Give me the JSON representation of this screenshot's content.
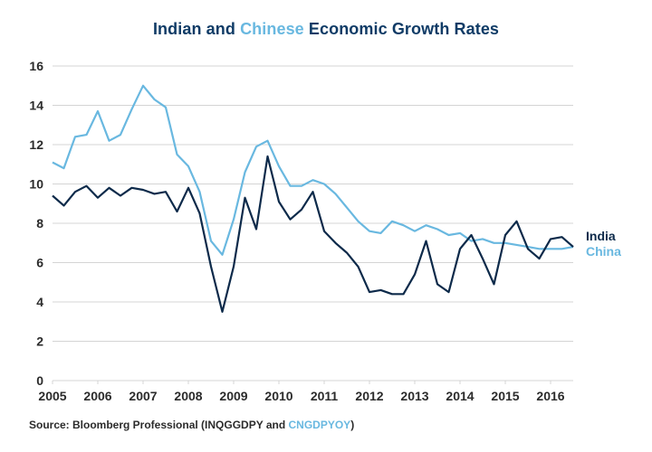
{
  "chart_data": {
    "type": "line",
    "title": {
      "prefix": "Indian and ",
      "highlight": "Chinese",
      "suffix": " Economic Growth Rates"
    },
    "xlabel": "",
    "ylabel": "",
    "xlim": [
      2005,
      2016.5
    ],
    "ylim": [
      0,
      16
    ],
    "yticks": [
      0,
      2,
      4,
      6,
      8,
      10,
      12,
      14,
      16
    ],
    "xticks": [
      2005,
      2006,
      2007,
      2008,
      2009,
      2010,
      2011,
      2012,
      2013,
      2014,
      2015,
      2016
    ],
    "grid": true,
    "legend_position": "right",
    "x_start": 2005,
    "x_step": 0.25,
    "series": [
      {
        "name": "India",
        "color": "#0d2a4a",
        "values": [
          9.4,
          8.9,
          9.6,
          9.9,
          9.3,
          9.8,
          9.4,
          9.8,
          9.7,
          9.5,
          9.6,
          8.6,
          9.8,
          8.5,
          5.8,
          3.5,
          5.8,
          9.3,
          7.7,
          11.4,
          9.1,
          8.2,
          8.7,
          9.6,
          7.6,
          7.0,
          6.5,
          5.8,
          4.5,
          4.6,
          4.4,
          4.4,
          5.4,
          7.1,
          4.9,
          4.5,
          6.7,
          7.4,
          6.2,
          4.9,
          7.4,
          8.1,
          6.7,
          6.2,
          7.2,
          7.3,
          6.8
        ]
      },
      {
        "name": "China",
        "color": "#69b8e0",
        "values": [
          11.1,
          10.8,
          12.4,
          12.5,
          13.7,
          12.2,
          12.5,
          13.8,
          15.0,
          14.3,
          13.9,
          11.5,
          10.9,
          9.6,
          7.1,
          6.4,
          8.2,
          10.6,
          11.9,
          12.2,
          10.9,
          9.9,
          9.9,
          10.2,
          10.0,
          9.5,
          8.8,
          8.1,
          7.6,
          7.5,
          8.1,
          7.9,
          7.6,
          7.9,
          7.7,
          7.4,
          7.5,
          7.1,
          7.2,
          7.0,
          7.0,
          6.9,
          6.8,
          6.7,
          6.7,
          6.7,
          6.8
        ]
      }
    ]
  },
  "source": {
    "prefix": "Source: Bloomberg Professional (INQGGDPY and ",
    "highlight": "CNGDPYOY",
    "suffix": ")"
  }
}
